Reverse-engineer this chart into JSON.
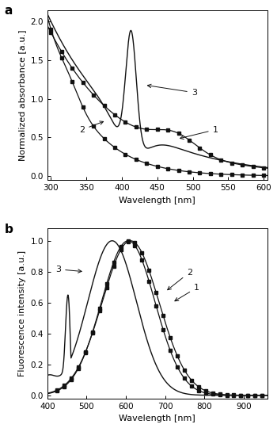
{
  "panel_a": {
    "xlabel": "Wavelength [nm]",
    "ylabel": "Normalized absorbance [a.u.]",
    "xlim": [
      295,
      605
    ],
    "ylim": [
      -0.05,
      2.15
    ],
    "yticks": [
      0.0,
      0.5,
      1.0,
      1.5,
      2.0
    ],
    "xticks": [
      300,
      350,
      400,
      450,
      500,
      550,
      600
    ],
    "label": "a"
  },
  "panel_b": {
    "xlabel": "Wavelength [nm]",
    "ylabel": "Fluorescence intensity [a.u.]",
    "xlim": [
      400,
      960
    ],
    "ylim": [
      -0.02,
      1.08
    ],
    "yticks": [
      0.0,
      0.2,
      0.4,
      0.6,
      0.8,
      1.0
    ],
    "xticks": [
      400,
      500,
      600,
      700,
      800,
      900
    ],
    "label": "b"
  },
  "line_color": "#111111",
  "marker_size": 2.8,
  "font_size": 8,
  "label_font_size": 8,
  "tick_font_size": 7.5
}
